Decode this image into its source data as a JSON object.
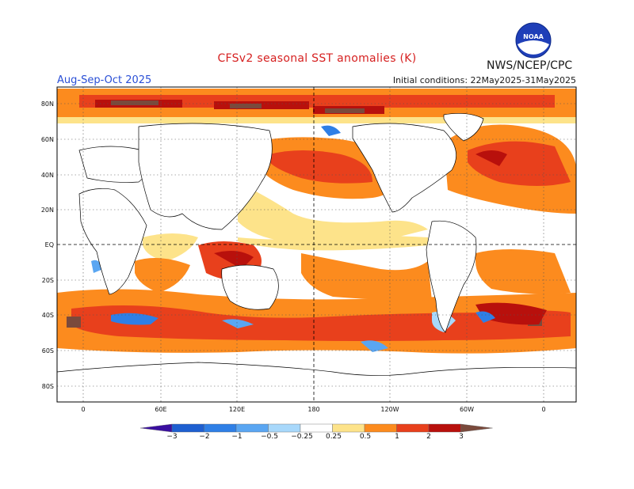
{
  "header": {
    "title": "CFSv2 seasonal SST anomalies (K)",
    "agency": "NWS/NCEP/CPC",
    "season": "Aug-Sep-Oct 2025",
    "initial_conditions": "Initial conditions: 22May2025-31May2025",
    "logo_text": "NOAA"
  },
  "map": {
    "lat_labels": [
      "80N",
      "60N",
      "40N",
      "20N",
      "EQ",
      "20S",
      "40S",
      "60S",
      "80S"
    ],
    "lon_labels": [
      "0",
      "60E",
      "120E",
      "180",
      "120W",
      "60W",
      "0"
    ],
    "projection": "cylindrical equidistant",
    "gridlines": "dotted, every 20 deg lat and 60 deg lon",
    "reference_lines": "dashed equator and dateline (180)"
  },
  "colorbar": {
    "tick_labels": [
      "−3",
      "−2",
      "−1",
      "−0.5",
      "−0.25",
      "0.25",
      "0.5",
      "1",
      "2",
      "3"
    ],
    "bins": [
      {
        "from": null,
        "to": -3,
        "color": "#3a0fa0"
      },
      {
        "from": -3,
        "to": -2,
        "color": "#1e5fd0"
      },
      {
        "from": -2,
        "to": -1,
        "color": "#2f7fe6"
      },
      {
        "from": -1,
        "to": -0.5,
        "color": "#5aa6f2"
      },
      {
        "from": -0.5,
        "to": -0.25,
        "color": "#a8d8fb"
      },
      {
        "from": -0.25,
        "to": 0.25,
        "color": "#ffffff"
      },
      {
        "from": 0.25,
        "to": 0.5,
        "color": "#fde38a"
      },
      {
        "from": 0.5,
        "to": 1,
        "color": "#fc8b1e"
      },
      {
        "from": 1,
        "to": 2,
        "color": "#e8401c"
      },
      {
        "from": 2,
        "to": 3,
        "color": "#b8100c"
      },
      {
        "from": 3,
        "to": null,
        "color": "#7a4a3c"
      }
    ]
  },
  "colors": {
    "title_red": "#d62020",
    "season_blue": "#2a4fd6",
    "neutral": "#ffffff",
    "land_outline": "#000000"
  }
}
